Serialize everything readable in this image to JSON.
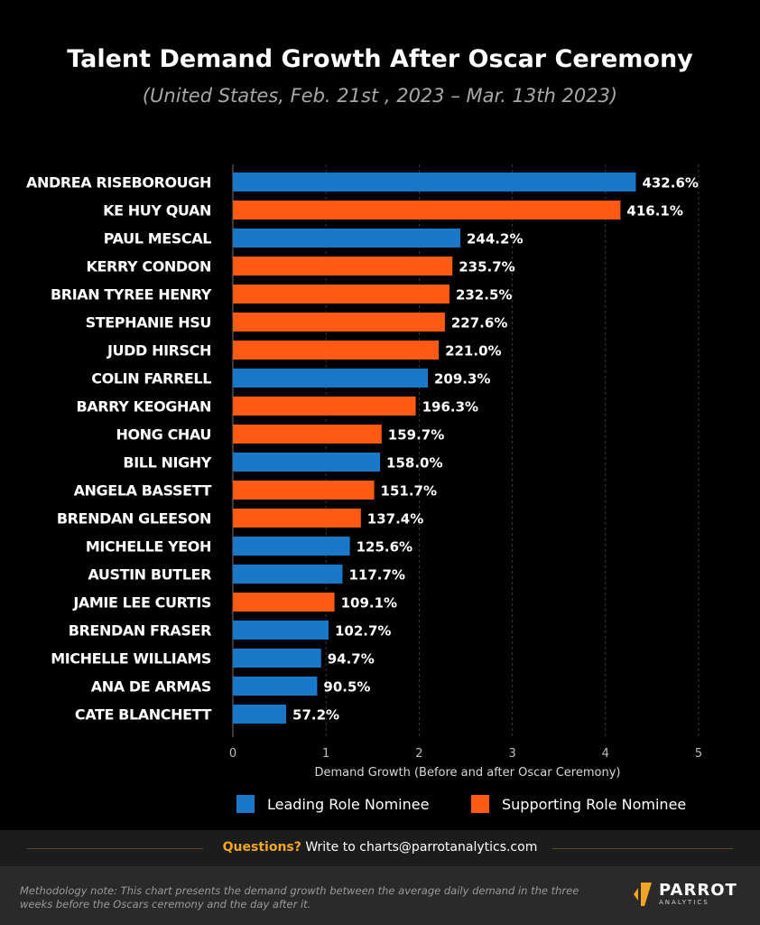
{
  "header": {
    "title": "Talent Demand Growth After Oscar Ceremony",
    "subtitle": "(United States, Feb. 21st , 2023 – Mar. 13th 2023)"
  },
  "chart_data": {
    "type": "bar",
    "orientation": "horizontal",
    "xlabel": "Demand Growth (Before and after Oscar Ceremony)",
    "xlim": [
      0,
      5
    ],
    "xticks": [
      "0",
      "1",
      "2",
      "3",
      "4",
      "5"
    ],
    "grid": "vertical dashed",
    "categories": [
      "ANDREA RISEBOROUGH",
      "KE HUY QUAN",
      "PAUL MESCAL",
      "KERRY CONDON",
      "BRIAN TYREE HENRY",
      "STEPHANIE HSU",
      "JUDD HIRSCH",
      "COLIN FARRELL",
      "BARRY KEOGHAN",
      "HONG CHAU",
      "BILL NIGHY",
      "ANGELA BASSETT",
      "BRENDAN GLEESON",
      "MICHELLE YEOH",
      "AUSTIN BUTLER",
      "JAMIE LEE CURTIS",
      "BRENDAN FRASER",
      "MICHELLE WILLIAMS",
      "ANA DE ARMAS",
      "CATE BLANCHETT"
    ],
    "values": [
      4.326,
      4.161,
      2.442,
      2.357,
      2.325,
      2.276,
      2.21,
      2.093,
      1.963,
      1.597,
      1.58,
      1.517,
      1.374,
      1.256,
      1.177,
      1.091,
      1.027,
      0.947,
      0.905,
      0.572
    ],
    "value_labels": [
      "432.6%",
      "416.1%",
      "244.2%",
      "235.7%",
      "232.5%",
      "227.6%",
      "221.0%",
      "209.3%",
      "196.3%",
      "159.7%",
      "158.0%",
      "151.7%",
      "137.4%",
      "125.6%",
      "117.7%",
      "109.1%",
      "102.7%",
      "94.7%",
      "90.5%",
      "57.2%"
    ],
    "groups": [
      "leading",
      "supporting",
      "leading",
      "supporting",
      "supporting",
      "supporting",
      "supporting",
      "leading",
      "supporting",
      "supporting",
      "leading",
      "supporting",
      "supporting",
      "leading",
      "leading",
      "supporting",
      "leading",
      "leading",
      "leading",
      "leading"
    ],
    "series": [
      {
        "key": "leading",
        "name": "Leading Role Nominee",
        "color": "#1a78c8"
      },
      {
        "key": "supporting",
        "name": "Supporting Role Nominee",
        "color": "#ff5a14"
      }
    ],
    "legend_position": "bottom"
  },
  "footer": {
    "question_label": "Questions?",
    "question_text": " Write to charts@parrotanalytics.com",
    "methodology": "Methodology note: This chart presents the demand growth between the average daily demand in the three weeks before the Oscars ceremony and the day after it.",
    "logo_name": "PARROT",
    "logo_sub": "ANALYTICS"
  }
}
